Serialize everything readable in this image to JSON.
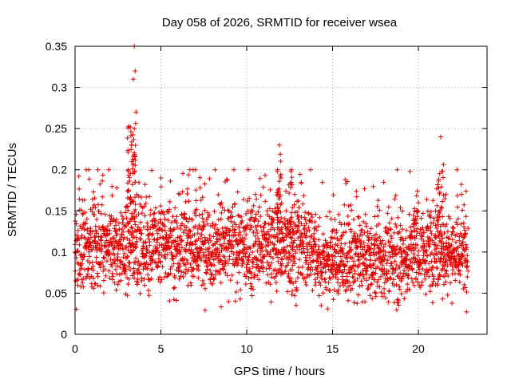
{
  "chart_data": {
    "type": "scatter",
    "title": "Day 058 of 2026, SRMTID for receiver wsea",
    "xlabel": "GPS time / hours",
    "ylabel": "SRMTID / TECUs",
    "xlim": [
      0,
      24
    ],
    "ylim": [
      0,
      0.35
    ],
    "x_ticks": [
      0,
      5,
      10,
      15,
      20
    ],
    "x_tick_labels": [
      "0",
      "5",
      "10",
      "15",
      "20"
    ],
    "y_ticks": [
      0,
      0.05,
      0.1,
      0.15,
      0.2,
      0.25,
      0.3,
      0.35
    ],
    "y_tick_labels": [
      "0",
      "0.05",
      "0.1",
      "0.15",
      "0.2",
      "0.25",
      "0.3",
      "0.35"
    ],
    "grid": true,
    "marker": "+",
    "color": "#e00000",
    "series": [
      {
        "name": "SRMTID",
        "summary": "Dense cloud of points spanning 0-23 h, mostly 0.05-0.15 TECU; peaks near 3.4 h (up to 0.35), 11.9 h (0.23), 12.6 h (0.20) and 21.3 h (0.24)",
        "x": [
          0.0,
          0.4,
          0.8,
          1.2,
          1.6,
          2.0,
          2.4,
          2.8,
          3.1,
          3.3,
          3.4,
          3.45,
          3.5,
          3.55,
          3.6,
          4.0,
          4.5,
          5.0,
          5.5,
          6.0,
          6.5,
          7.0,
          7.5,
          8.0,
          8.5,
          9.0,
          9.5,
          10.0,
          10.5,
          11.0,
          11.5,
          11.8,
          11.9,
          12.0,
          12.3,
          12.6,
          12.8,
          13.0,
          13.5,
          14.0,
          14.5,
          15.0,
          15.5,
          16.0,
          16.5,
          17.0,
          17.5,
          18.0,
          18.5,
          19.0,
          19.5,
          20.0,
          20.5,
          21.0,
          21.3,
          21.6,
          22.0,
          22.5,
          22.8
        ],
        "y": [
          0.1,
          0.12,
          0.2,
          0.11,
          0.13,
          0.1,
          0.12,
          0.14,
          0.2,
          0.23,
          0.31,
          0.35,
          0.32,
          0.27,
          0.17,
          0.13,
          0.1,
          0.19,
          0.12,
          0.11,
          0.13,
          0.15,
          0.11,
          0.1,
          0.14,
          0.12,
          0.11,
          0.1,
          0.17,
          0.13,
          0.15,
          0.2,
          0.23,
          0.19,
          0.15,
          0.2,
          0.17,
          0.14,
          0.11,
          0.13,
          0.1,
          0.09,
          0.11,
          0.1,
          0.09,
          0.1,
          0.08,
          0.09,
          0.08,
          0.1,
          0.12,
          0.16,
          0.11,
          0.15,
          0.24,
          0.17,
          0.13,
          0.11,
          0.09
        ]
      }
    ]
  }
}
